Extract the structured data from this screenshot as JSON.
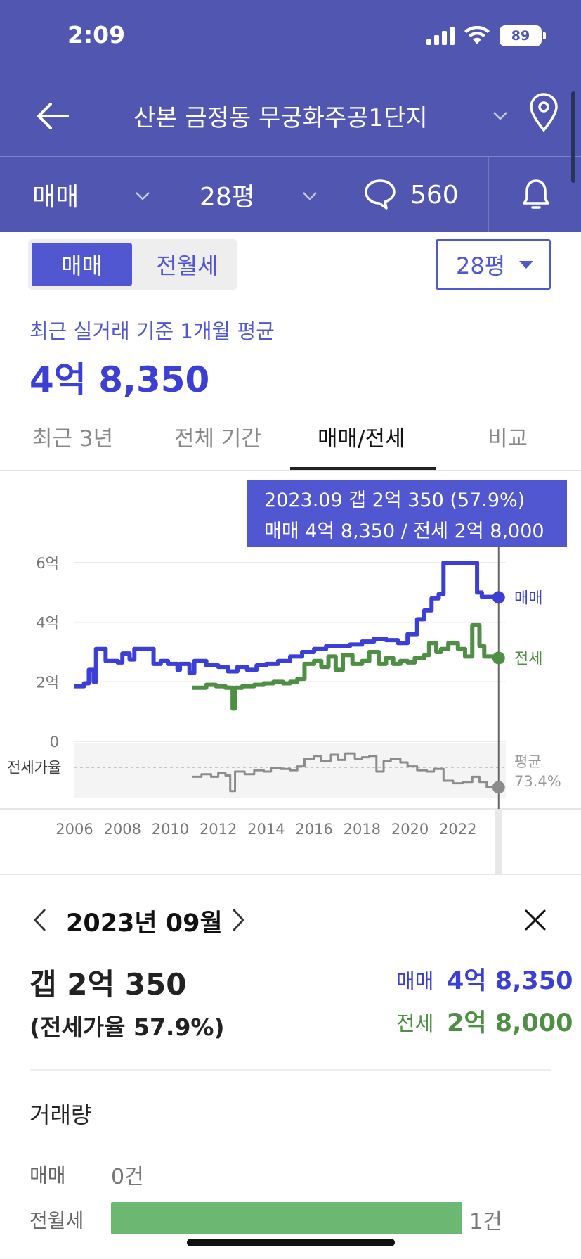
{
  "status": {
    "time": "2:09",
    "battery": "89"
  },
  "header": {
    "title": "산본 금정동 무궁화주공1단지",
    "filters": {
      "deal_type": "매매",
      "size": "28평",
      "comments": "560"
    }
  },
  "toggle": {
    "active": "매매",
    "inactive": "전월세"
  },
  "size_select": "28평",
  "summary": {
    "label": "최근 실거래 기준 1개월 평균",
    "value": "4억 8,350"
  },
  "tabs": [
    {
      "label": "최근 3년",
      "active": false
    },
    {
      "label": "전체 기간",
      "active": false
    },
    {
      "label": "매매/전세",
      "active": true
    },
    {
      "label": "비교",
      "active": false
    }
  ],
  "tooltip": {
    "line1": "2023.09  갭 2억 350 (57.9%)",
    "line2": "매매 4억 8,350 / 전세 2억 8,000"
  },
  "colors": {
    "primary": "#5156b0",
    "accent": "#3b3fd6",
    "sale": "#3b3fd6",
    "jeonse": "#4e8f45",
    "ratio": "#8c8c8c"
  },
  "chart_data": {
    "type": "line",
    "y_unit": "억",
    "y_ticks": [
      "6억",
      "4억",
      "2억",
      "0"
    ],
    "ylim": [
      0,
      6
    ],
    "x_ticks": [
      "2006",
      "2008",
      "2010",
      "2012",
      "2014",
      "2016",
      "2018",
      "2020",
      "2022"
    ],
    "xlim": [
      2006,
      2024.0
    ],
    "series": [
      {
        "name": "매매",
        "color": "#3b3fd6",
        "points": [
          [
            2006.0,
            1.85
          ],
          [
            2006.4,
            1.95
          ],
          [
            2006.6,
            2.4
          ],
          [
            2006.8,
            2.0
          ],
          [
            2006.9,
            3.1
          ],
          [
            2007.2,
            3.1
          ],
          [
            2007.3,
            2.7
          ],
          [
            2007.8,
            2.65
          ],
          [
            2008.0,
            2.95
          ],
          [
            2008.3,
            2.75
          ],
          [
            2008.5,
            3.1
          ],
          [
            2009.0,
            3.1
          ],
          [
            2009.2,
            3.1
          ],
          [
            2009.3,
            2.6
          ],
          [
            2009.6,
            2.7
          ],
          [
            2009.9,
            2.6
          ],
          [
            2010.3,
            2.4
          ],
          [
            2010.4,
            2.6
          ],
          [
            2010.8,
            2.3
          ],
          [
            2011.0,
            2.7
          ],
          [
            2011.5,
            2.55
          ],
          [
            2012.0,
            2.5
          ],
          [
            2012.4,
            2.35
          ],
          [
            2012.8,
            2.5
          ],
          [
            2013.2,
            2.4
          ],
          [
            2013.6,
            2.55
          ],
          [
            2014.0,
            2.6
          ],
          [
            2014.5,
            2.7
          ],
          [
            2015.0,
            2.85
          ],
          [
            2015.5,
            3.0
          ],
          [
            2016.0,
            3.1
          ],
          [
            2016.5,
            3.2
          ],
          [
            2017.0,
            3.2
          ],
          [
            2017.5,
            3.25
          ],
          [
            2018.0,
            3.35
          ],
          [
            2018.5,
            3.45
          ],
          [
            2019.0,
            3.4
          ],
          [
            2019.5,
            3.3
          ],
          [
            2019.9,
            3.6
          ],
          [
            2020.3,
            4.1
          ],
          [
            2020.6,
            4.4
          ],
          [
            2020.9,
            4.8
          ],
          [
            2021.2,
            4.95
          ],
          [
            2021.4,
            6.0
          ],
          [
            2022.6,
            6.0
          ],
          [
            2022.8,
            5.0
          ],
          [
            2023.0,
            4.85
          ],
          [
            2023.7,
            4.835
          ]
        ]
      },
      {
        "name": "전세",
        "color": "#4e8f45",
        "points": [
          [
            2010.9,
            1.8
          ],
          [
            2011.2,
            1.8
          ],
          [
            2011.5,
            1.9
          ],
          [
            2011.9,
            1.85
          ],
          [
            2012.3,
            1.8
          ],
          [
            2012.6,
            1.1
          ],
          [
            2012.7,
            1.8
          ],
          [
            2013.0,
            1.85
          ],
          [
            2013.5,
            1.9
          ],
          [
            2013.9,
            1.95
          ],
          [
            2014.3,
            2.0
          ],
          [
            2014.7,
            1.95
          ],
          [
            2015.0,
            2.0
          ],
          [
            2015.3,
            2.1
          ],
          [
            2015.6,
            2.6
          ],
          [
            2016.0,
            2.7
          ],
          [
            2016.3,
            2.5
          ],
          [
            2016.6,
            2.85
          ],
          [
            2016.9,
            2.4
          ],
          [
            2017.2,
            2.9
          ],
          [
            2017.6,
            2.6
          ],
          [
            2018.0,
            2.7
          ],
          [
            2018.3,
            3.0
          ],
          [
            2018.7,
            2.6
          ],
          [
            2019.0,
            2.8
          ],
          [
            2019.3,
            2.6
          ],
          [
            2019.6,
            2.7
          ],
          [
            2019.9,
            2.65
          ],
          [
            2020.2,
            2.8
          ],
          [
            2020.6,
            2.9
          ],
          [
            2020.8,
            3.3
          ],
          [
            2021.1,
            3.0
          ],
          [
            2021.3,
            3.1
          ],
          [
            2021.6,
            3.3
          ],
          [
            2022.0,
            3.1
          ],
          [
            2022.3,
            2.85
          ],
          [
            2022.6,
            3.9
          ],
          [
            2022.9,
            3.2
          ],
          [
            2023.1,
            2.85
          ],
          [
            2023.7,
            2.8
          ]
        ]
      },
      {
        "name": "전세가율",
        "color": "#8c8c8c",
        "points": [
          [
            2010.9,
            66
          ],
          [
            2011.3,
            68
          ],
          [
            2011.7,
            66
          ],
          [
            2012.0,
            69
          ],
          [
            2012.3,
            67
          ],
          [
            2012.5,
            55
          ],
          [
            2012.7,
            70
          ],
          [
            2013.1,
            68
          ],
          [
            2013.5,
            71
          ],
          [
            2013.9,
            70
          ],
          [
            2014.2,
            73
          ],
          [
            2014.6,
            72
          ],
          [
            2015.0,
            71
          ],
          [
            2015.3,
            74
          ],
          [
            2015.6,
            80
          ],
          [
            2016.0,
            82
          ],
          [
            2016.3,
            78
          ],
          [
            2016.7,
            83
          ],
          [
            2017.0,
            79
          ],
          [
            2017.3,
            84
          ],
          [
            2017.7,
            80
          ],
          [
            2018.0,
            81
          ],
          [
            2018.3,
            82
          ],
          [
            2018.6,
            70
          ],
          [
            2018.9,
            78
          ],
          [
            2019.2,
            80
          ],
          [
            2019.6,
            77
          ],
          [
            2019.9,
            74
          ],
          [
            2020.3,
            71
          ],
          [
            2020.7,
            70
          ],
          [
            2021.0,
            72
          ],
          [
            2021.4,
            63
          ],
          [
            2021.8,
            61
          ],
          [
            2022.2,
            62
          ],
          [
            2022.6,
            66
          ],
          [
            2022.9,
            62
          ],
          [
            2023.2,
            58
          ],
          [
            2023.7,
            57.9
          ]
        ]
      }
    ],
    "ratio_avg": 73.4,
    "ratio_label": "전세가율",
    "ratio_avg_label": "평균",
    "ratio_avg_text": "73.4%",
    "selected": {
      "date": "2023.09",
      "sale": 4.835,
      "jeonse": 2.8,
      "ratio": 57.9
    },
    "legend": [
      "매매",
      "전세"
    ],
    "grid": true
  },
  "detail": {
    "month": "2023년 09월",
    "gap": "갭 2억 350",
    "rate": "(전세가율 57.9%)",
    "sale_label": "매매",
    "sale_value": "4억 8,350",
    "jeonse_label": "전세",
    "jeonse_value": "2억 8,000"
  },
  "volume": {
    "title": "거래량",
    "rows": [
      {
        "label": "매매",
        "count": "0건",
        "value": 0
      },
      {
        "label": "전월세",
        "count": "1건",
        "value": 1
      }
    ]
  }
}
